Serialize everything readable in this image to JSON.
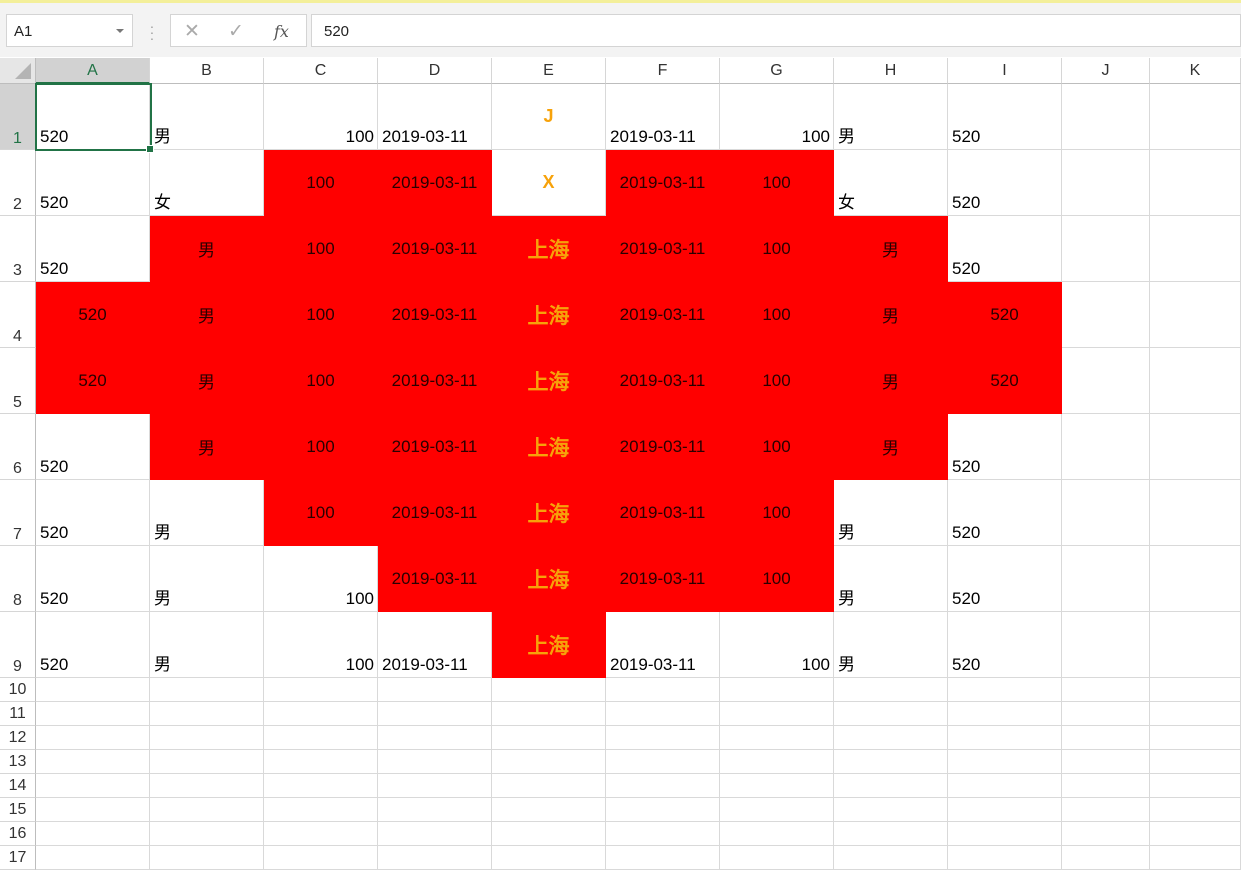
{
  "formula_bar": {
    "name_box": "A1",
    "cancel_icon": "✕",
    "enter_icon": "✓",
    "fx_label": "fx",
    "formula": "520"
  },
  "columns": [
    "A",
    "B",
    "C",
    "D",
    "E",
    "F",
    "G",
    "H",
    "I",
    "J",
    "K"
  ],
  "selected_cell": "A1",
  "colors": {
    "fill": "#ff0000",
    "accent_text": "#f7a20a",
    "selection": "#217346"
  },
  "rows": [
    {
      "num": "1",
      "cells": [
        "520",
        "男",
        "100",
        "2019-03-11",
        "J",
        "2019-03-11",
        "100",
        "男",
        "520",
        "",
        ""
      ],
      "red": [
        0,
        0,
        0,
        0,
        0,
        0,
        0,
        0,
        0,
        0,
        0
      ]
    },
    {
      "num": "2",
      "cells": [
        "520",
        "女",
        "100",
        "2019-03-11",
        "X",
        "2019-03-11",
        "100",
        "女",
        "520",
        "",
        ""
      ],
      "red": [
        0,
        0,
        1,
        1,
        0,
        1,
        1,
        0,
        0,
        0,
        0
      ]
    },
    {
      "num": "3",
      "cells": [
        "520",
        "男",
        "100",
        "2019-03-11",
        "上海",
        "2019-03-11",
        "100",
        "男",
        "520",
        "",
        ""
      ],
      "red": [
        0,
        1,
        1,
        1,
        1,
        1,
        1,
        1,
        0,
        0,
        0
      ]
    },
    {
      "num": "4",
      "cells": [
        "520",
        "男",
        "100",
        "2019-03-11",
        "上海",
        "2019-03-11",
        "100",
        "男",
        "520",
        "",
        ""
      ],
      "red": [
        1,
        1,
        1,
        1,
        1,
        1,
        1,
        1,
        1,
        0,
        0
      ]
    },
    {
      "num": "5",
      "cells": [
        "520",
        "男",
        "100",
        "2019-03-11",
        "上海",
        "2019-03-11",
        "100",
        "男",
        "520",
        "",
        ""
      ],
      "red": [
        1,
        1,
        1,
        1,
        1,
        1,
        1,
        1,
        1,
        0,
        0
      ]
    },
    {
      "num": "6",
      "cells": [
        "520",
        "男",
        "100",
        "2019-03-11",
        "上海",
        "2019-03-11",
        "100",
        "男",
        "520",
        "",
        ""
      ],
      "red": [
        0,
        1,
        1,
        1,
        1,
        1,
        1,
        1,
        0,
        0,
        0
      ]
    },
    {
      "num": "7",
      "cells": [
        "520",
        "男",
        "100",
        "2019-03-11",
        "上海",
        "2019-03-11",
        "100",
        "男",
        "520",
        "",
        ""
      ],
      "red": [
        0,
        0,
        1,
        1,
        1,
        1,
        1,
        0,
        0,
        0,
        0
      ]
    },
    {
      "num": "8",
      "cells": [
        "520",
        "男",
        "100",
        "2019-03-11",
        "上海",
        "2019-03-11",
        "100",
        "男",
        "520",
        "",
        ""
      ],
      "red": [
        0,
        0,
        0,
        1,
        1,
        1,
        1,
        0,
        0,
        0,
        0
      ]
    },
    {
      "num": "9",
      "cells": [
        "520",
        "男",
        "100",
        "2019-03-11",
        "上海",
        "2019-03-11",
        "100",
        "男",
        "520",
        "",
        ""
      ],
      "red": [
        0,
        0,
        0,
        0,
        1,
        0,
        0,
        0,
        0,
        0,
        0
      ]
    }
  ],
  "empty_rows": [
    "10",
    "11",
    "12",
    "13",
    "14",
    "15",
    "16",
    "17"
  ]
}
